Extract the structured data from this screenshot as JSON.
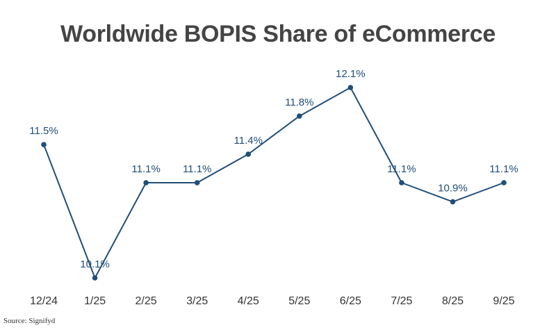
{
  "chart_data": {
    "type": "line",
    "title": "Worldwide BOPIS Share of eCommerce",
    "categories": [
      "12/24",
      "1/25",
      "2/25",
      "3/25",
      "4/25",
      "5/25",
      "6/25",
      "7/25",
      "8/25",
      "9/25"
    ],
    "series": [
      {
        "values": [
          11.5,
          10.1,
          11.1,
          11.1,
          11.4,
          11.8,
          12.1,
          11.1,
          10.9,
          11.1
        ],
        "labels": [
          "11.5%",
          "10.1%",
          "11.1%",
          "11.1%",
          "11.4%",
          "11.8%",
          "12.1%",
          "11.1%",
          "10.9%",
          "11.1%"
        ]
      }
    ],
    "ylim": [
      10.1,
      12.1
    ],
    "grid": false,
    "legend": "none",
    "colors": {
      "line": "#1f4e79",
      "label": "#1f4e79",
      "title": "#444444",
      "tick": "#333333"
    }
  },
  "source": "Source: Signifyd"
}
